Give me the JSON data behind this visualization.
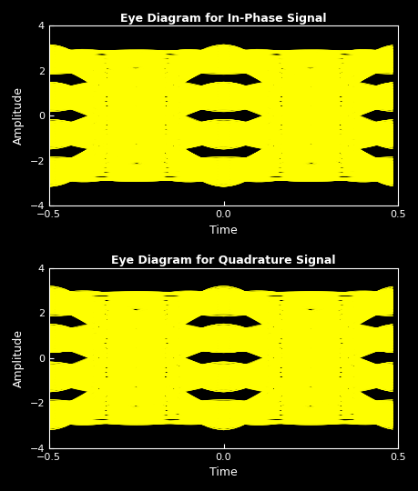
{
  "title1": "Eye Diagram for In-Phase Signal",
  "title2": "Eye Diagram for Quadrature Signal",
  "xlabel": "Time",
  "ylabel": "Amplitude",
  "xlim": [
    -0.5,
    0.5
  ],
  "ylim": [
    -4,
    4
  ],
  "bg_color": "#000000",
  "line_color": "#ffff00",
  "text_color": "#ffffff",
  "line_alpha": 1.0,
  "line_width": 0.5,
  "sps": 32,
  "num_symbols": 5000,
  "rolloff": 0.5,
  "modulation_levels": [
    -3,
    -1,
    1,
    3
  ],
  "yticks": [
    -4,
    -2,
    0,
    2,
    4
  ],
  "xticks": [
    -0.5,
    0,
    0.5
  ],
  "title_fontsize": 9,
  "label_fontsize": 9,
  "tick_fontsize": 8,
  "fig_width": 4.6,
  "fig_height": 5.4,
  "dpi": 100
}
